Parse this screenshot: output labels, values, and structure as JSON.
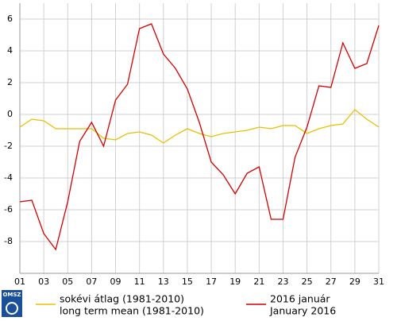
{
  "chart_data": {
    "type": "line",
    "x": [
      1,
      2,
      3,
      4,
      5,
      6,
      7,
      8,
      9,
      10,
      11,
      12,
      13,
      14,
      15,
      16,
      17,
      18,
      19,
      20,
      21,
      22,
      23,
      24,
      25,
      26,
      27,
      28,
      29,
      30,
      31
    ],
    "series": [
      {
        "name": [
          "sokévi átlag (1981-2010)",
          "long term mean (1981-2010)"
        ],
        "color": "#e8c000",
        "values": [
          -0.8,
          -0.3,
          -0.4,
          -0.9,
          -0.9,
          -0.9,
          -0.9,
          -1.5,
          -1.6,
          -1.2,
          -1.1,
          -1.3,
          -1.8,
          -1.3,
          -0.9,
          -1.2,
          -1.4,
          -1.2,
          -1.1,
          -1.0,
          -0.8,
          -0.9,
          -0.7,
          -0.7,
          -1.2,
          -0.9,
          -0.7,
          -0.6,
          0.3,
          -0.3,
          -0.8
        ]
      },
      {
        "name": [
          "2016 január",
          "January 2016"
        ],
        "color": "#d40000",
        "values": [
          -5.5,
          -5.4,
          -7.5,
          -8.5,
          -5.5,
          -1.7,
          -0.5,
          -2.0,
          0.9,
          1.9,
          5.4,
          5.7,
          3.8,
          2.9,
          1.6,
          -0.5,
          -3.0,
          -3.8,
          -5.0,
          -3.7,
          -3.3,
          -6.6,
          -6.6,
          -2.7,
          -0.8,
          1.8,
          1.7,
          4.5,
          2.9,
          3.2,
          5.6
        ]
      }
    ],
    "xlim": [
      1,
      31
    ],
    "xticks": [
      {
        "value": 1,
        "label": "01"
      },
      {
        "value": 3,
        "label": "03"
      },
      {
        "value": 5,
        "label": "05"
      },
      {
        "value": 7,
        "label": "07"
      },
      {
        "value": 9,
        "label": "09"
      },
      11,
      13,
      15,
      17,
      19,
      21,
      23,
      25,
      27,
      29,
      31
    ],
    "ylim": [
      -10,
      7
    ],
    "yticks": [
      -8,
      -6,
      -4,
      -2,
      0,
      2,
      4,
      6
    ],
    "grid": true,
    "logo": "OMSZ"
  }
}
